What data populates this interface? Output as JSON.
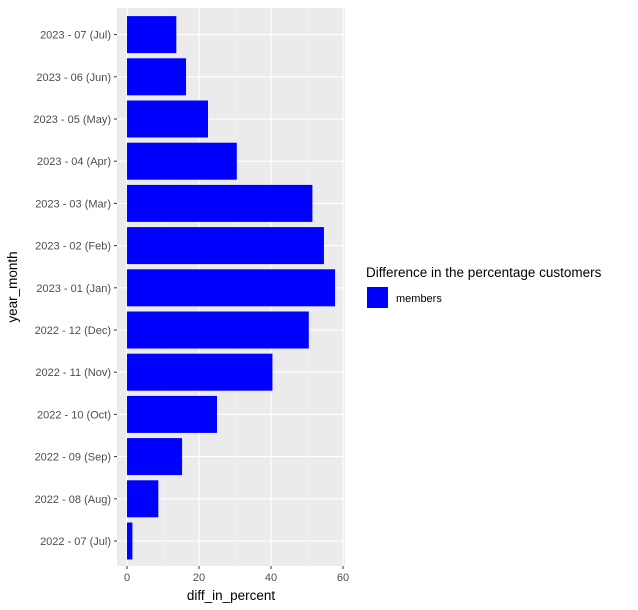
{
  "chart_data": {
    "type": "bar",
    "orientation": "horizontal",
    "title": "",
    "xlabel": "diff_in_percent",
    "ylabel": "year_month",
    "xlim": [
      0,
      60
    ],
    "x_ticks": [
      0,
      20,
      40,
      60
    ],
    "grid": true,
    "legend": {
      "title": "Difference in the percentage customers",
      "placement": "right",
      "entries": [
        {
          "label": "members",
          "color": "#0000ff"
        }
      ]
    },
    "categories": [
      "2022 - 07 (Jul)",
      "2022 - 08 (Aug)",
      "2022 - 09 (Sep)",
      "2022 - 10 (Oct)",
      "2022 - 11 (Nov)",
      "2022 - 12 (Dec)",
      "2023 - 01 (Jan)",
      "2023 - 02 (Feb)",
      "2023 - 03 (Mar)",
      "2023 - 04 (Apr)",
      "2023 - 05 (May)",
      "2023 - 06 (Jun)",
      "2023 - 07 (Jul)"
    ],
    "series": [
      {
        "name": "members",
        "color": "#0000ff",
        "values": [
          1.5,
          8.7,
          15.3,
          25.0,
          40.4,
          50.5,
          57.8,
          54.7,
          51.5,
          30.5,
          22.5,
          16.4,
          13.7
        ]
      }
    ],
    "colors": {
      "panel_background": "#ebebeb",
      "grid_major": "#ffffff",
      "bar_fill": "#0000ff"
    }
  }
}
